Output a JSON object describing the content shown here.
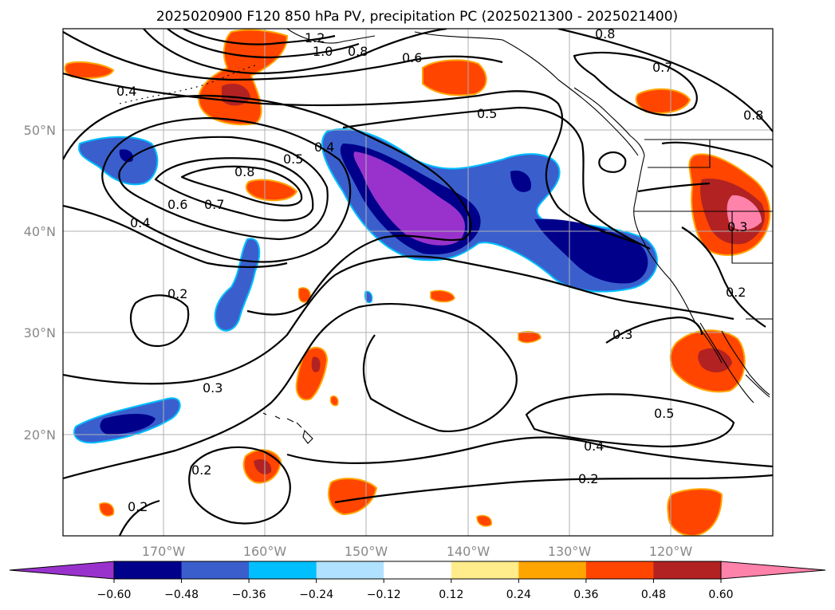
{
  "figure": {
    "title": "2025020900 F120 850 hPa PV, precipitation PC (2025021300 - 2025021400)"
  },
  "map": {
    "lon_ticks": [
      "170°W",
      "160°W",
      "150°W",
      "140°W",
      "130°W",
      "120°W"
    ],
    "lat_ticks": [
      "50°N",
      "40°N",
      "30°N",
      "20°N"
    ],
    "contour_labels": [
      "1.2",
      "1.0",
      "0.8",
      "0.8",
      "0.6",
      "0.7",
      "0.8",
      "0.4",
      "0.5",
      "0.4",
      "0.8",
      "0.7",
      "0.6",
      "0.4",
      "0.5",
      "0.2",
      "0.3",
      "0.3",
      "0.5",
      "0.4",
      "0.2",
      "0.2",
      "0.2",
      "0.3",
      "0.2"
    ]
  },
  "colorbar": {
    "tick_labels": [
      "−0.60",
      "−0.48",
      "−0.36",
      "−0.24",
      "−0.12",
      "0.12",
      "0.24",
      "0.36",
      "0.48",
      "0.60"
    ],
    "colors": [
      "#9932cc",
      "#00008b",
      "#3a5fcd",
      "#00bfff",
      "#b0e2ff",
      "#ffffff",
      "#ffec8b",
      "#ffa500",
      "#ff4500",
      "#b22222",
      "#ff82ab"
    ]
  },
  "colors": {
    "purple": "#9932cc",
    "navy": "#00008b",
    "royal": "#3a5fcd",
    "sky": "#00bfff",
    "pale_blue": "#b0e2ff",
    "pale_yellow": "#ffec8b",
    "orange": "#ffa500",
    "orange_red": "#ff4500",
    "firebrick": "#b22222",
    "pink": "#ff82ab"
  }
}
